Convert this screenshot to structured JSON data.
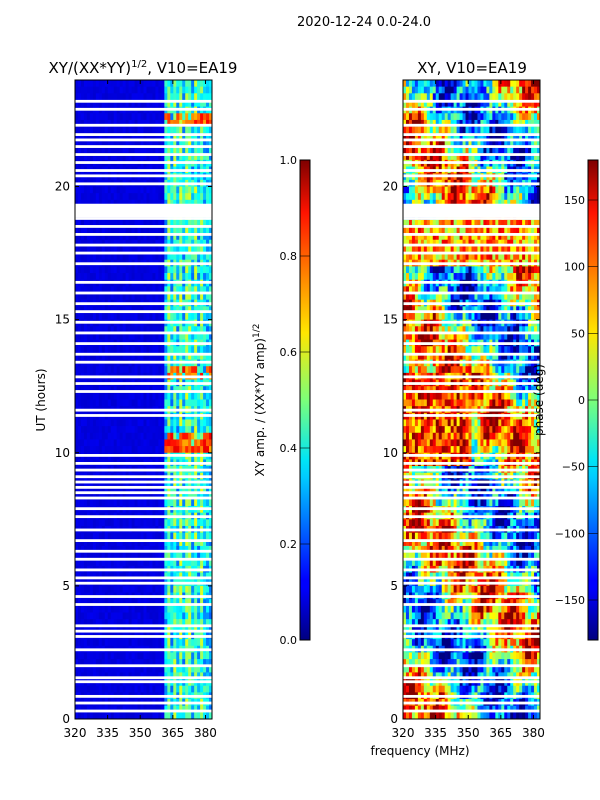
{
  "figure": {
    "suptitle": "2020-12-24 0.0-24.0",
    "xlabel": "frequency (MHz)",
    "ylabel": "UT (hours)"
  },
  "chart_data": [
    {
      "type": "heatmap",
      "title_main": "XY/(XX*YY)",
      "title_exp": "1/2",
      "title_suffix": ", V10=EA19",
      "x_range": [
        320,
        383
      ],
      "y_range": [
        0,
        24
      ],
      "x_ticks": [
        320,
        335,
        350,
        365,
        380
      ],
      "y_ticks": [
        0,
        5,
        10,
        15,
        20
      ],
      "colorbar": {
        "label_main": "XY amp. / (XX*YY amp)",
        "label_exp": "1/2",
        "range": [
          0.0,
          1.0
        ],
        "ticks": [
          "0.0",
          "0.2",
          "0.4",
          "0.6",
          "0.8",
          "1.0"
        ],
        "tick_values": [
          0,
          0.2,
          0.4,
          0.6,
          0.8,
          1.0
        ],
        "colormap": "jet"
      },
      "bright_channels_mhz": [
        363,
        366,
        369,
        372,
        375,
        378
      ],
      "peak_hours": [
        10.2,
        10.4,
        13.1,
        22.6
      ]
    },
    {
      "type": "heatmap",
      "title": "XY, V10=EA19",
      "x_range": [
        320,
        383
      ],
      "y_range": [
        0,
        24
      ],
      "x_ticks": [
        320,
        335,
        350,
        365,
        380
      ],
      "y_ticks": [
        0,
        5,
        10,
        15,
        20
      ],
      "colorbar": {
        "label": "phase (deg)",
        "range": [
          -180,
          180
        ],
        "ticks": [
          "−150",
          "−100",
          "−50",
          "0",
          "50",
          "100",
          "150"
        ],
        "tick_values": [
          -150,
          -100,
          -50,
          0,
          50,
          100,
          150
        ],
        "colormap": "jet"
      }
    }
  ],
  "flagged_hours": [
    0.3,
    0.6,
    0.85,
    1.4,
    1.55,
    2.0,
    2.6,
    3.1,
    3.3,
    3.5,
    4.3,
    4.6,
    5.1,
    5.3,
    5.6,
    6.0,
    6.3,
    6.7,
    7.1,
    7.6,
    7.9,
    8.3,
    8.5,
    8.7,
    8.9,
    9.1,
    9.35,
    9.6,
    9.9,
    11.4,
    11.6,
    12.3,
    12.6,
    12.85,
    13.4,
    13.7,
    14.1,
    14.5,
    14.9,
    15.3,
    15.6,
    16.0,
    16.4,
    17.1,
    17.5,
    17.8,
    18.2,
    18.5,
    18.8,
    19.1,
    19.3,
    20.1,
    20.4,
    20.6,
    20.9,
    21.2,
    21.5,
    21.75,
    21.95,
    22.3,
    22.9,
    23.2
  ]
}
